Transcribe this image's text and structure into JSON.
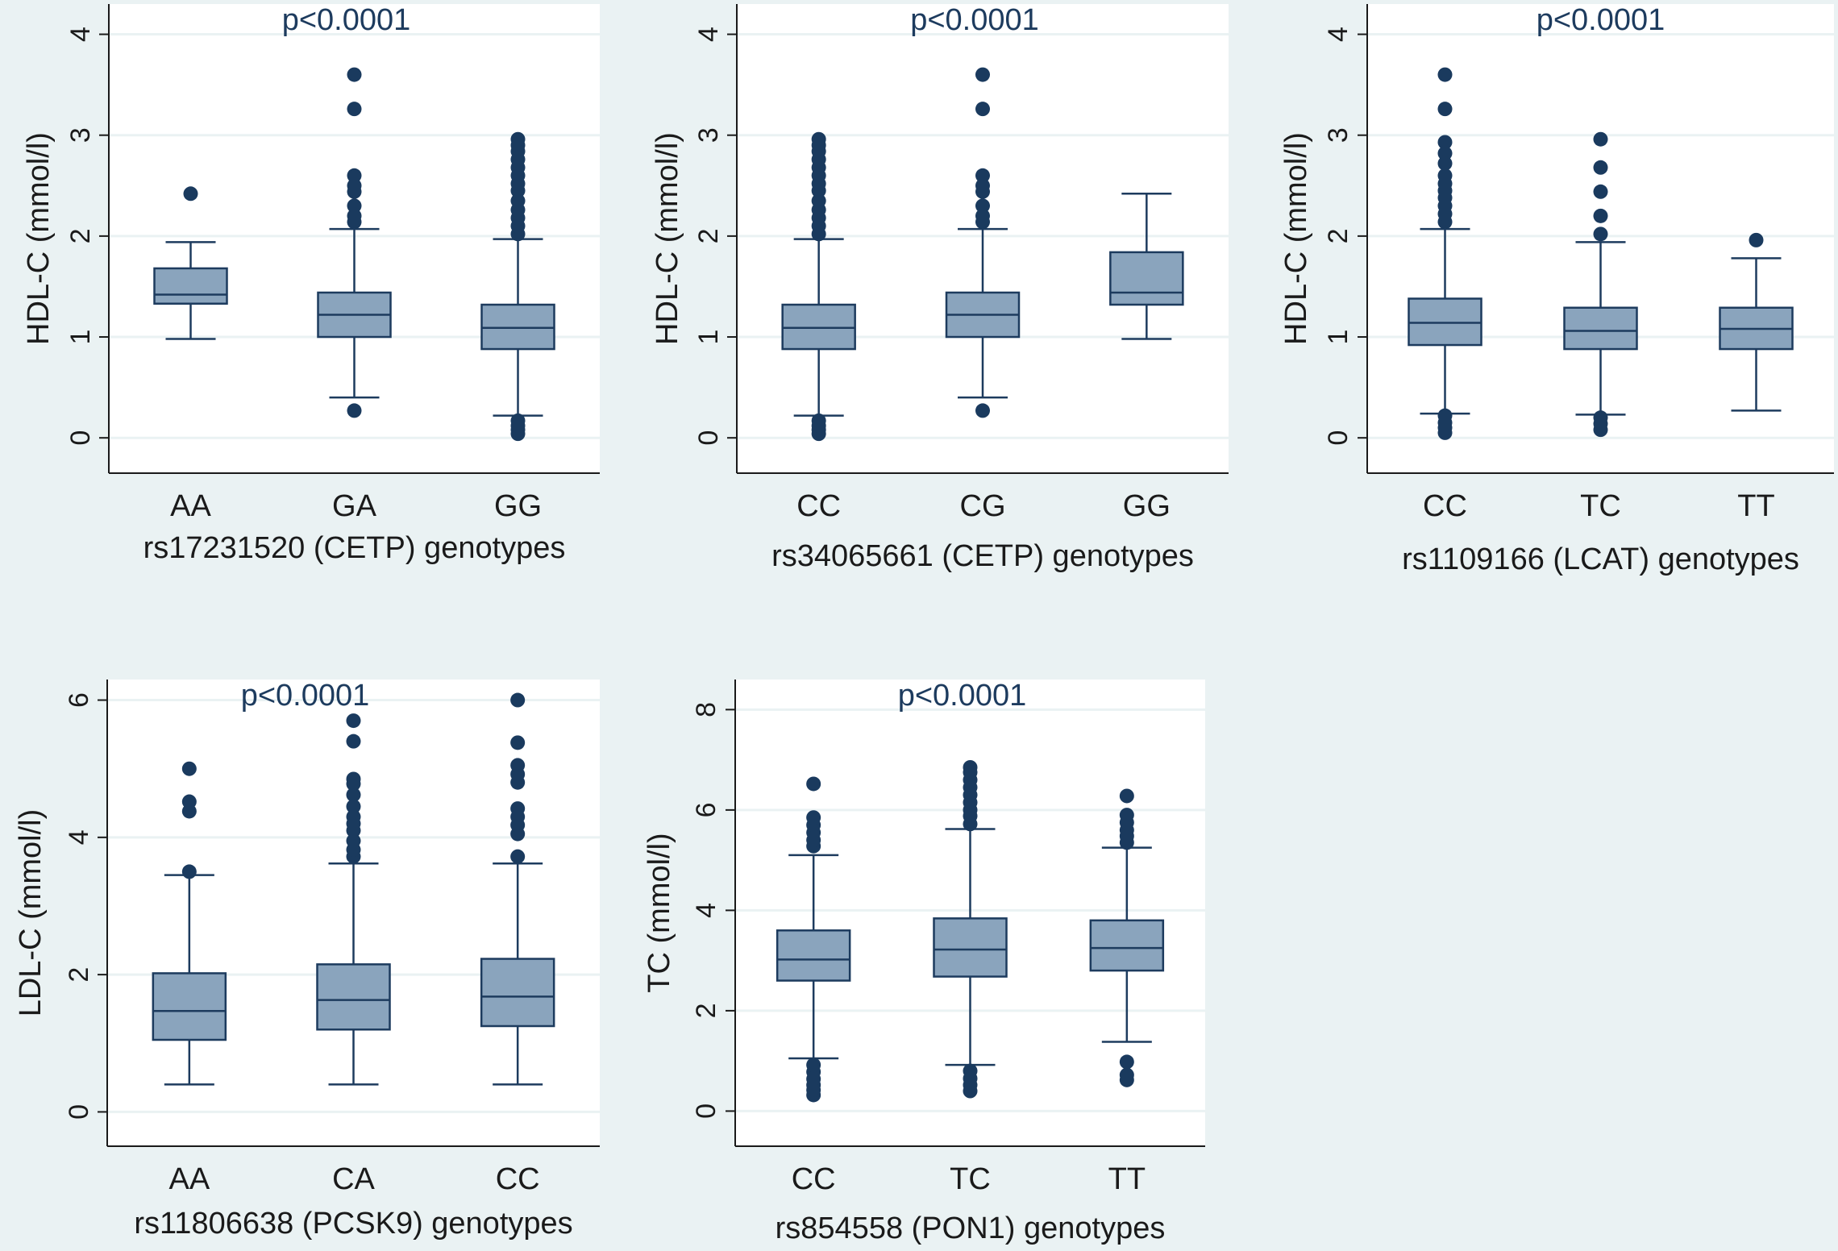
{
  "figure": {
    "background_color": "#eaf2f3",
    "plot_background_color": "#ffffff",
    "box_fill_color": "#8aa4bd",
    "line_color": "#1d3b5e",
    "point_color": "#1a3a5e"
  },
  "chart_data": [
    {
      "type": "box",
      "annotation": "p<0.0001",
      "ylabel": "HDL-C (mmol/l)",
      "xlabel": "rs17231520 (CETP) genotypes",
      "yticks": [
        0,
        1,
        2,
        3,
        4
      ],
      "ylim": [
        -0.35,
        4.3
      ],
      "grid": true,
      "categories": [
        "AA",
        "GA",
        "GG"
      ],
      "boxes": [
        {
          "q1": 1.33,
          "median": 1.42,
          "q3": 1.68,
          "whisker_low": 0.98,
          "whisker_high": 1.94,
          "outliers": [
            2.42
          ]
        },
        {
          "q1": 1.0,
          "median": 1.22,
          "q3": 1.44,
          "whisker_low": 0.4,
          "whisker_high": 2.07,
          "outliers": [
            0.27,
            2.14,
            2.2,
            2.3,
            2.44,
            2.5,
            2.6,
            3.26,
            3.6
          ]
        },
        {
          "q1": 0.88,
          "median": 1.09,
          "q3": 1.32,
          "whisker_low": 0.22,
          "whisker_high": 1.97,
          "outliers": [
            0.04,
            0.08,
            0.12,
            0.17,
            2.02,
            2.1,
            2.18,
            2.26,
            2.35,
            2.45,
            2.52,
            2.6,
            2.68,
            2.76,
            2.84,
            2.9,
            2.96
          ]
        }
      ]
    },
    {
      "type": "box",
      "annotation": "p<0.0001",
      "ylabel": "HDL-C (mmol/l)",
      "xlabel": "rs34065661 (CETP) genotypes",
      "yticks": [
        0,
        1,
        2,
        3,
        4
      ],
      "ylim": [
        -0.35,
        4.3
      ],
      "grid": true,
      "categories": [
        "CC",
        "CG",
        "GG"
      ],
      "boxes": [
        {
          "q1": 0.88,
          "median": 1.09,
          "q3": 1.32,
          "whisker_low": 0.22,
          "whisker_high": 1.97,
          "outliers": [
            0.04,
            0.08,
            0.12,
            0.17,
            2.02,
            2.1,
            2.18,
            2.26,
            2.35,
            2.45,
            2.52,
            2.6,
            2.68,
            2.76,
            2.84,
            2.9,
            2.96
          ]
        },
        {
          "q1": 1.0,
          "median": 1.22,
          "q3": 1.44,
          "whisker_low": 0.4,
          "whisker_high": 2.07,
          "outliers": [
            0.27,
            2.14,
            2.2,
            2.3,
            2.44,
            2.5,
            2.6,
            3.26,
            3.6
          ]
        },
        {
          "q1": 1.32,
          "median": 1.44,
          "q3": 1.84,
          "whisker_low": 0.98,
          "whisker_high": 2.42,
          "outliers": []
        }
      ]
    },
    {
      "type": "box",
      "annotation": "p<0.0001",
      "ylabel": "HDL-C (mmol/l)",
      "xlabel": "rs1109166 (LCAT) genotypes",
      "yticks": [
        0,
        1,
        2,
        3,
        4
      ],
      "ylim": [
        -0.35,
        4.3
      ],
      "grid": true,
      "categories": [
        "CC",
        "TC",
        "TT"
      ],
      "boxes": [
        {
          "q1": 0.92,
          "median": 1.14,
          "q3": 1.38,
          "whisker_low": 0.24,
          "whisker_high": 2.07,
          "outliers": [
            0.05,
            0.1,
            0.15,
            0.22,
            2.14,
            2.22,
            2.3,
            2.38,
            2.45,
            2.52,
            2.6,
            2.72,
            2.82,
            2.93,
            3.26,
            3.6
          ]
        },
        {
          "q1": 0.88,
          "median": 1.06,
          "q3": 1.29,
          "whisker_low": 0.23,
          "whisker_high": 1.94,
          "outliers": [
            0.08,
            0.14,
            0.2,
            2.02,
            2.2,
            2.44,
            2.68,
            2.96
          ]
        },
        {
          "q1": 0.88,
          "median": 1.08,
          "q3": 1.29,
          "whisker_low": 0.27,
          "whisker_high": 1.78,
          "outliers": [
            1.96
          ]
        }
      ]
    },
    {
      "type": "box",
      "annotation": "p<0.0001",
      "ylabel": "LDL-C (mmol/l)",
      "xlabel": "rs11806638 (PCSK9) genotypes",
      "yticks": [
        0,
        2,
        4,
        6
      ],
      "ylim": [
        -0.5,
        6.3
      ],
      "grid": true,
      "categories": [
        "AA",
        "CA",
        "CC"
      ],
      "boxes": [
        {
          "q1": 1.05,
          "median": 1.47,
          "q3": 2.02,
          "whisker_low": 0.4,
          "whisker_high": 3.45,
          "outliers": [
            3.5,
            4.38,
            4.52,
            5.0
          ]
        },
        {
          "q1": 1.2,
          "median": 1.63,
          "q3": 2.15,
          "whisker_low": 0.4,
          "whisker_high": 3.62,
          "outliers": [
            3.72,
            3.82,
            3.95,
            4.1,
            4.2,
            4.3,
            4.45,
            4.62,
            4.78,
            4.85,
            5.4,
            5.7
          ]
        },
        {
          "q1": 1.25,
          "median": 1.68,
          "q3": 2.23,
          "whisker_low": 0.4,
          "whisker_high": 3.62,
          "outliers": [
            3.72,
            4.05,
            4.18,
            4.3,
            4.42,
            4.8,
            4.92,
            5.05,
            5.38,
            6.0
          ]
        }
      ]
    },
    {
      "type": "box",
      "annotation": "p<0.0001",
      "ylabel": "TC (mmol/l)",
      "xlabel": "rs854558 (PON1) genotypes",
      "yticks": [
        0,
        2,
        4,
        6,
        8
      ],
      "ylim": [
        -0.7,
        8.6
      ],
      "grid": true,
      "categories": [
        "CC",
        "TC",
        "TT"
      ],
      "boxes": [
        {
          "q1": 2.6,
          "median": 3.02,
          "q3": 3.6,
          "whisker_low": 1.05,
          "whisker_high": 5.1,
          "outliers": [
            0.32,
            0.42,
            0.52,
            0.64,
            0.78,
            0.92,
            5.28,
            5.4,
            5.55,
            5.7,
            5.85,
            6.52
          ]
        },
        {
          "q1": 2.68,
          "median": 3.22,
          "q3": 3.84,
          "whisker_low": 0.92,
          "whisker_high": 5.62,
          "outliers": [
            0.4,
            0.52,
            0.65,
            0.8,
            5.72,
            5.88,
            6.0,
            6.15,
            6.3,
            6.45,
            6.6,
            6.75,
            6.85
          ]
        },
        {
          "q1": 2.8,
          "median": 3.25,
          "q3": 3.8,
          "whisker_low": 1.38,
          "whisker_high": 5.25,
          "outliers": [
            0.62,
            0.72,
            0.98,
            5.35,
            5.48,
            5.6,
            5.75,
            5.9,
            6.28
          ]
        }
      ]
    }
  ]
}
